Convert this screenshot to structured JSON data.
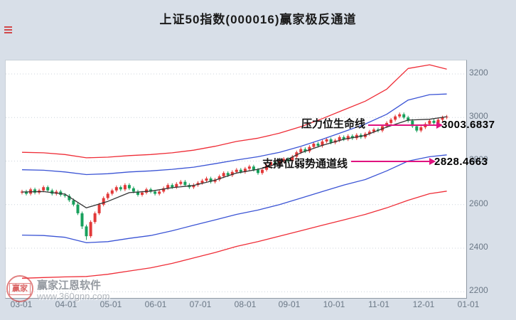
{
  "title": "上证50指数(000016)赢家极反通道",
  "colors": {
    "background": "#d8dfe8",
    "plot_bg": "#ffffff",
    "up": "#e23939",
    "down": "#18a05c",
    "channel_red": "#ef2d37",
    "channel_blue": "#3b54d5",
    "lifeline_black": "#333333",
    "annotation_magenta": "#e0137f",
    "grid": "#ccd3db",
    "axis_text": "#6b7886"
  },
  "watermark": {
    "seal": "赢家",
    "brand": "赢家江恩软件",
    "url": "www.360gnn.com"
  },
  "chart_data": {
    "type": "candlestick",
    "title": "上证50指数(000016)赢家极反通道",
    "index_name": "上证50指数",
    "symbol": "000016",
    "channel_name": "赢家极反通道",
    "ylim": [
      2200,
      3200
    ],
    "y_ticks": [
      3200,
      3000,
      2800,
      2600,
      2400,
      2200
    ],
    "x_ticks": [
      "03-01",
      "04-01",
      "05-01",
      "06-01",
      "07-01",
      "08-01",
      "09-01",
      "10-01",
      "11-01",
      "12-01",
      "01-01"
    ],
    "grid": "horizontal dotted",
    "legend": "none",
    "annotations": [
      {
        "label": "压力位生命线",
        "value": "3003.6837"
      },
      {
        "label": "支撑位弱势通道线",
        "value": "2828.4663"
      }
    ],
    "candles_note": "[open, high, low, close] per bar, March to mid-December",
    "candles": [
      [
        2655,
        2668,
        2647,
        2660
      ],
      [
        2660,
        2668,
        2642,
        2650
      ],
      [
        2650,
        2678,
        2642,
        2670
      ],
      [
        2670,
        2678,
        2647,
        2655
      ],
      [
        2655,
        2673,
        2647,
        2665
      ],
      [
        2665,
        2688,
        2657,
        2680
      ],
      [
        2680,
        2688,
        2657,
        2665
      ],
      [
        2665,
        2673,
        2642,
        2650
      ],
      [
        2650,
        2668,
        2642,
        2660
      ],
      [
        2660,
        2668,
        2637,
        2645
      ],
      [
        2645,
        2653,
        2632,
        2640
      ],
      [
        2640,
        2648,
        2612,
        2620
      ],
      [
        2620,
        2628,
        2592,
        2600
      ],
      [
        2600,
        2608,
        2552,
        2560
      ],
      [
        2560,
        2568,
        2488,
        2500
      ],
      [
        2500,
        2508,
        2438,
        2455
      ],
      [
        2455,
        2528,
        2447,
        2520
      ],
      [
        2520,
        2568,
        2512,
        2560
      ],
      [
        2560,
        2608,
        2552,
        2600
      ],
      [
        2600,
        2638,
        2592,
        2630
      ],
      [
        2630,
        2658,
        2622,
        2650
      ],
      [
        2650,
        2673,
        2642,
        2665
      ],
      [
        2665,
        2688,
        2657,
        2680
      ],
      [
        2680,
        2688,
        2662,
        2670
      ],
      [
        2670,
        2698,
        2662,
        2690
      ],
      [
        2690,
        2698,
        2667,
        2675
      ],
      [
        2675,
        2683,
        2652,
        2660
      ],
      [
        2660,
        2668,
        2637,
        2645
      ],
      [
        2645,
        2663,
        2637,
        2655
      ],
      [
        2655,
        2678,
        2647,
        2670
      ],
      [
        2670,
        2678,
        2652,
        2660
      ],
      [
        2660,
        2668,
        2642,
        2650
      ],
      [
        2650,
        2668,
        2642,
        2660
      ],
      [
        2660,
        2683,
        2652,
        2675
      ],
      [
        2675,
        2698,
        2667,
        2690
      ],
      [
        2690,
        2698,
        2672,
        2680
      ],
      [
        2680,
        2703,
        2672,
        2695
      ],
      [
        2695,
        2713,
        2687,
        2705
      ],
      [
        2705,
        2713,
        2682,
        2690
      ],
      [
        2690,
        2698,
        2672,
        2680
      ],
      [
        2680,
        2698,
        2672,
        2690
      ],
      [
        2690,
        2708,
        2682,
        2700
      ],
      [
        2700,
        2718,
        2692,
        2710
      ],
      [
        2710,
        2728,
        2702,
        2720
      ],
      [
        2720,
        2728,
        2697,
        2705
      ],
      [
        2705,
        2723,
        2697,
        2715
      ],
      [
        2715,
        2738,
        2707,
        2730
      ],
      [
        2730,
        2753,
        2722,
        2745
      ],
      [
        2745,
        2753,
        2727,
        2735
      ],
      [
        2735,
        2758,
        2727,
        2750
      ],
      [
        2750,
        2768,
        2742,
        2760
      ],
      [
        2760,
        2768,
        2742,
        2750
      ],
      [
        2750,
        2773,
        2742,
        2765
      ],
      [
        2765,
        2783,
        2757,
        2775
      ],
      [
        2775,
        2783,
        2752,
        2760
      ],
      [
        2760,
        2768,
        2737,
        2745
      ],
      [
        2745,
        2768,
        2737,
        2760
      ],
      [
        2760,
        2788,
        2752,
        2780
      ],
      [
        2780,
        2803,
        2772,
        2795
      ],
      [
        2795,
        2803,
        2777,
        2785
      ],
      [
        2785,
        2808,
        2777,
        2800
      ],
      [
        2800,
        2818,
        2792,
        2810
      ],
      [
        2810,
        2818,
        2792,
        2800
      ],
      [
        2800,
        2828,
        2792,
        2820
      ],
      [
        2820,
        2848,
        2812,
        2840
      ],
      [
        2840,
        2863,
        2832,
        2855
      ],
      [
        2855,
        2863,
        2837,
        2845
      ],
      [
        2845,
        2873,
        2837,
        2865
      ],
      [
        2865,
        2888,
        2857,
        2880
      ],
      [
        2880,
        2888,
        2862,
        2870
      ],
      [
        2870,
        2898,
        2862,
        2890
      ],
      [
        2890,
        2908,
        2882,
        2900
      ],
      [
        2900,
        2908,
        2877,
        2885
      ],
      [
        2885,
        2903,
        2877,
        2895
      ],
      [
        2895,
        2918,
        2887,
        2910
      ],
      [
        2910,
        2918,
        2892,
        2900
      ],
      [
        2900,
        2923,
        2892,
        2915
      ],
      [
        2915,
        2923,
        2897,
        2905
      ],
      [
        2905,
        2928,
        2897,
        2920
      ],
      [
        2920,
        2928,
        2902,
        2910
      ],
      [
        2910,
        2933,
        2902,
        2925
      ],
      [
        2925,
        2943,
        2917,
        2935
      ],
      [
        2935,
        2953,
        2927,
        2945
      ],
      [
        2945,
        2953,
        2932,
        2940
      ],
      [
        2940,
        2968,
        2932,
        2960
      ],
      [
        2960,
        2983,
        2952,
        2975
      ],
      [
        2975,
        2998,
        2967,
        2990
      ],
      [
        2990,
        3013,
        2982,
        3005
      ],
      [
        3005,
        3023,
        2997,
        3015
      ],
      [
        3015,
        3023,
        2992,
        3000
      ],
      [
        3000,
        3008,
        2977,
        2985
      ],
      [
        2985,
        2993,
        2952,
        2960
      ],
      [
        2960,
        2968,
        2932,
        2940
      ],
      [
        2940,
        2963,
        2932,
        2955
      ],
      [
        2955,
        2978,
        2947,
        2970
      ],
      [
        2970,
        2993,
        2962,
        2985
      ],
      [
        2985,
        2993,
        2967,
        2975
      ],
      [
        2975,
        2998,
        2967,
        2990
      ],
      [
        2990,
        3008,
        2982,
        3000
      ],
      [
        3000,
        3012,
        2992,
        3003.68
      ]
    ],
    "line_sample_indices": [
      0,
      5,
      10,
      15,
      20,
      25,
      30,
      35,
      40,
      45,
      50,
      55,
      60,
      65,
      70,
      75,
      80,
      85,
      90,
      95,
      99
    ],
    "lines": [
      {
        "name": "upper-red-channel",
        "color": "#ef2d37",
        "values": [
          2840,
          2838,
          2830,
          2815,
          2818,
          2825,
          2830,
          2838,
          2850,
          2868,
          2890,
          2905,
          2928,
          2958,
          2995,
          3035,
          3075,
          3130,
          3225,
          3242,
          3222
        ]
      },
      {
        "name": "upper-blue-channel",
        "color": "#3b54d5",
        "values": [
          2760,
          2758,
          2750,
          2738,
          2742,
          2750,
          2755,
          2762,
          2772,
          2788,
          2805,
          2820,
          2840,
          2868,
          2900,
          2935,
          2970,
          3015,
          3080,
          3105,
          3108
        ]
      },
      {
        "name": "lifeline-black",
        "color": "#333333",
        "values": [
          2658,
          2660,
          2648,
          2585,
          2615,
          2655,
          2662,
          2678,
          2688,
          2712,
          2745,
          2762,
          2790,
          2838,
          2872,
          2900,
          2918,
          2956,
          2988,
          2992,
          3003.68
        ]
      },
      {
        "name": "lower-blue-weak-channel",
        "color": "#3b54d5",
        "values": [
          2460,
          2458,
          2450,
          2425,
          2430,
          2445,
          2458,
          2480,
          2505,
          2530,
          2555,
          2575,
          2600,
          2630,
          2660,
          2690,
          2715,
          2755,
          2800,
          2820,
          2828.47
        ]
      },
      {
        "name": "lower-red-channel",
        "color": "#ef2d37",
        "values": [
          2262,
          2265,
          2268,
          2270,
          2280,
          2295,
          2310,
          2330,
          2355,
          2380,
          2408,
          2430,
          2455,
          2480,
          2505,
          2530,
          2555,
          2585,
          2620,
          2650,
          2662
        ]
      }
    ]
  }
}
